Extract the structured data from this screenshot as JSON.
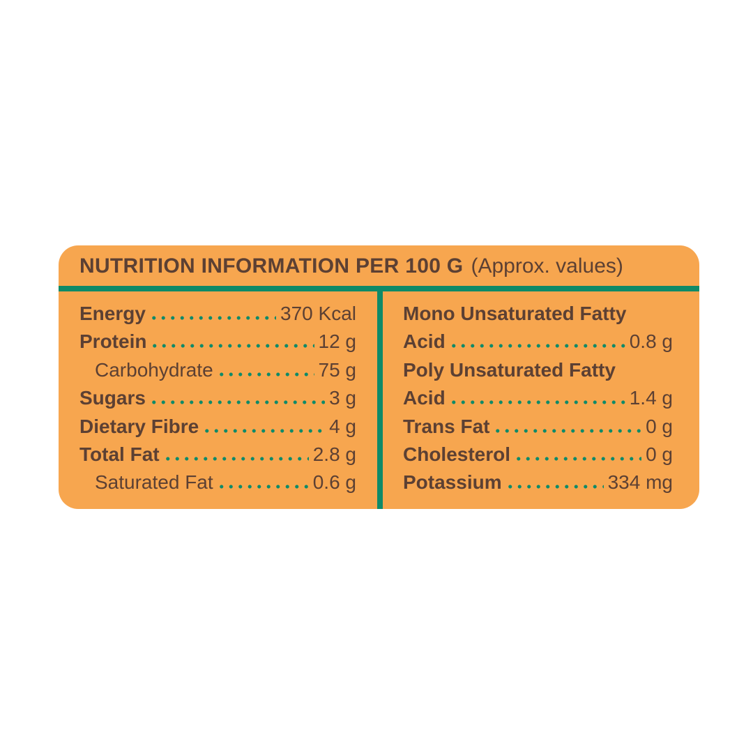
{
  "header": {
    "title": "NUTRITION INFORMATION PER 100 G",
    "subtitle": "(Approx. values)"
  },
  "colors": {
    "page_background": "#FFFFFF",
    "card_background": "#F7A64F",
    "text_brown": "#5C4033",
    "accent_teal": "#0F8A68"
  },
  "left_column": {
    "rows": [
      {
        "label": "Energy",
        "value": "370 Kcal",
        "bold": true,
        "indent": false
      },
      {
        "label": "Protein",
        "value": "12 g",
        "bold": true,
        "indent": false
      },
      {
        "label": "Carbohydrate",
        "value": "75 g",
        "bold": false,
        "indent": true
      },
      {
        "label": "Sugars",
        "value": "3 g",
        "bold": true,
        "indent": false
      },
      {
        "label": "Dietary Fibre",
        "value": "4 g",
        "bold": true,
        "indent": false
      },
      {
        "label": "Total Fat",
        "value": "2.8 g",
        "bold": true,
        "indent": false
      },
      {
        "label": "Saturated Fat",
        "value": "0.6 g",
        "bold": false,
        "indent": true
      }
    ]
  },
  "right_column": {
    "rows": [
      {
        "label": "Mono Unsaturated Fatty",
        "bold": true,
        "indent": false
      },
      {
        "label": "Acid",
        "value": "0.8 g",
        "bold": true,
        "indent": false
      },
      {
        "label": "Poly Unsaturated Fatty",
        "bold": true,
        "indent": false
      },
      {
        "label": "Acid",
        "value": "1.4 g",
        "bold": true,
        "indent": false
      },
      {
        "label": "Trans Fat",
        "value": "0 g",
        "bold": true,
        "indent": false
      },
      {
        "label": "Cholesterol",
        "value": "0 g",
        "bold": true,
        "indent": false
      },
      {
        "label": "Potassium",
        "value": "334 mg",
        "bold": true,
        "indent": false
      }
    ]
  }
}
